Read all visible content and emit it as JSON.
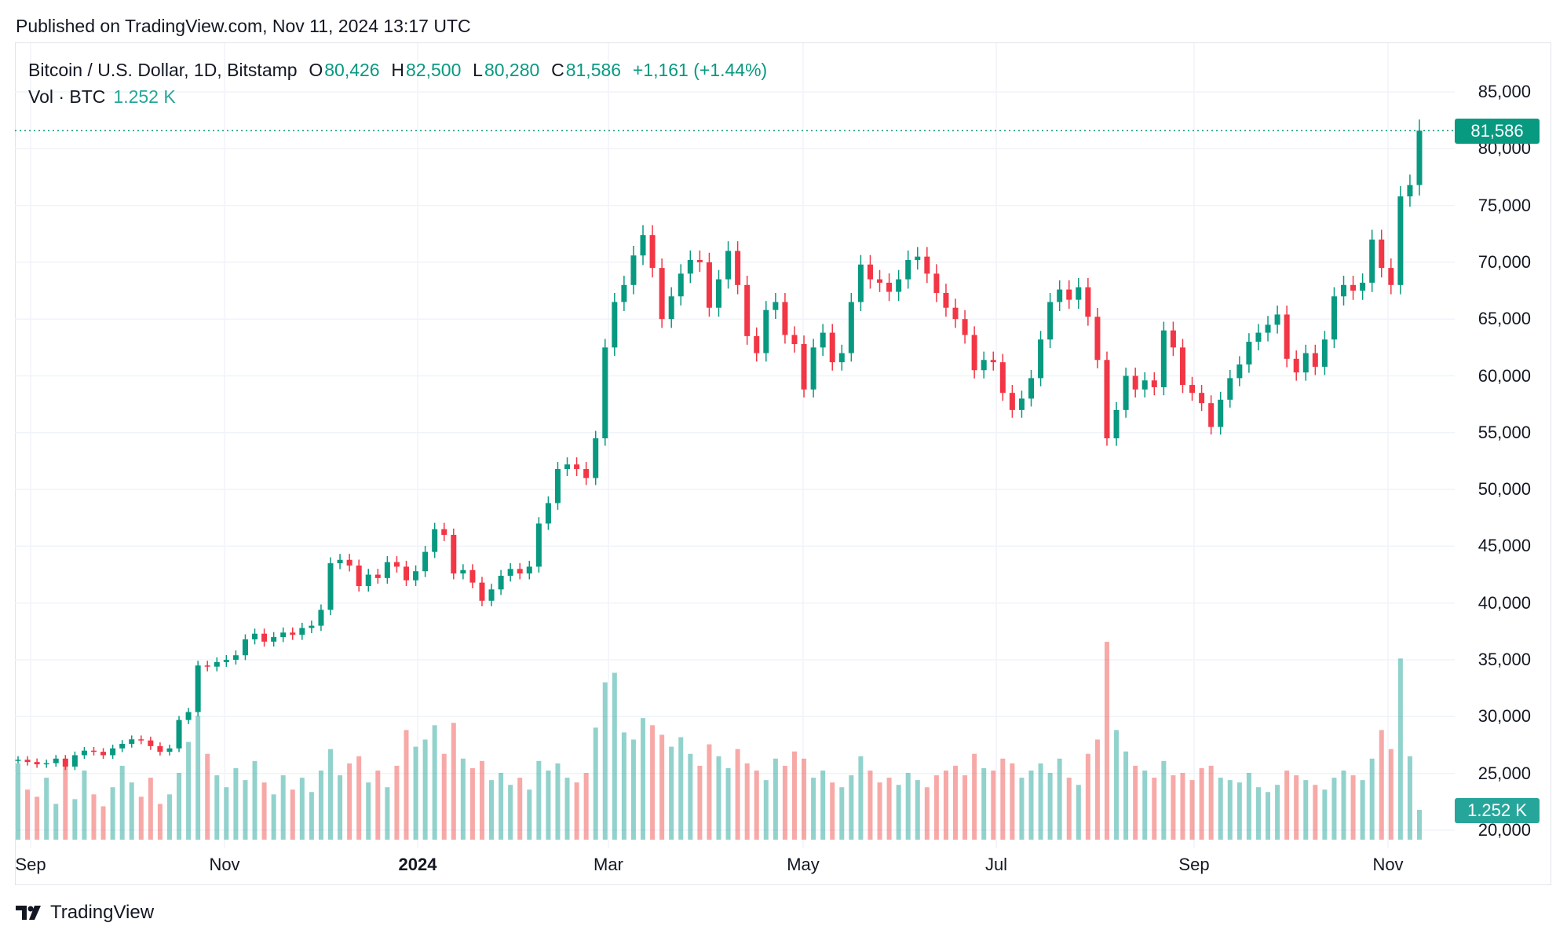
{
  "published": "Published on TradingView.com, Nov 11, 2024 13:17 UTC",
  "legend": {
    "symbol": "Bitcoin / U.S. Dollar, 1D, Bitstamp",
    "o_label": "O",
    "o": "80,426",
    "h_label": "H",
    "h": "82,500",
    "l_label": "L",
    "l": "80,280",
    "c_label": "C",
    "c": "81,586",
    "change": "+1,161 (+1.44%)",
    "vol_label": "Vol · BTC",
    "vol": "1.252 K"
  },
  "price_tag": "81,586",
  "volume_tag": "1.252 K",
  "logo_text": "TradingView",
  "colors": {
    "up": "#089981",
    "down": "#F23645",
    "vol_up": "#26a69a",
    "vol_down": "#ef5350",
    "grid": "#f0f3fa"
  },
  "chart_data": {
    "type": "candlestick",
    "interval": "1D",
    "ylim": [
      20000,
      85000
    ],
    "yticks": [
      "85,000",
      "80,000",
      "75,000",
      "70,000",
      "65,000",
      "60,000",
      "55,000",
      "50,000",
      "45,000",
      "40,000",
      "35,000",
      "30,000",
      "25,000",
      "20,000"
    ],
    "xticks": [
      {
        "label": "Sep",
        "bold": false
      },
      {
        "label": "Nov",
        "bold": false
      },
      {
        "label": "2024",
        "bold": true
      },
      {
        "label": "Mar",
        "bold": false
      },
      {
        "label": "May",
        "bold": false
      },
      {
        "label": "Jul",
        "bold": false
      },
      {
        "label": "Sep",
        "bold": false
      },
      {
        "label": "Nov",
        "bold": false
      }
    ],
    "grid": true,
    "last_price": 81586,
    "close": [
      26200,
      26000,
      25800,
      25900,
      26300,
      25600,
      26600,
      27000,
      26900,
      26600,
      27200,
      27600,
      28000,
      27900,
      27400,
      26900,
      27200,
      29700,
      30400,
      34500,
      34400,
      34800,
      35000,
      35400,
      36800,
      37300,
      36600,
      37000,
      37400,
      37200,
      37800,
      38000,
      39400,
      43500,
      43800,
      43300,
      41500,
      42500,
      42200,
      43600,
      43200,
      42000,
      42800,
      44500,
      46500,
      46000,
      42600,
      42900,
      41800,
      40200,
      41200,
      42400,
      43000,
      42600,
      43200,
      47000,
      48800,
      51800,
      52200,
      51800,
      51000,
      54500,
      62500,
      66500,
      68000,
      70600,
      72400,
      69500,
      65000,
      67000,
      69000,
      70200,
      70000,
      66000,
      68500,
      71000,
      68000,
      63500,
      62000,
      65800,
      66500,
      63600,
      62800,
      58800,
      62500,
      63800,
      61200,
      62000,
      66500,
      69800,
      68500,
      68200,
      67400,
      68500,
      70200,
      70500,
      69000,
      67300,
      66000,
      65000,
      63600,
      60500,
      61400,
      61200,
      58500,
      57000,
      58000,
      59800,
      63200,
      66500,
      67600,
      66700,
      67800,
      65200,
      61400,
      54500,
      57000,
      60000,
      58800,
      59600,
      59000,
      64000,
      62500,
      59200,
      58500,
      57600,
      55500,
      57900,
      59800,
      61000,
      63000,
      63800,
      64500,
      65400,
      61500,
      60300,
      62000,
      60800,
      63200,
      67000,
      68000,
      67500,
      68200,
      72000,
      69500,
      68000,
      75800,
      76800,
      81586
    ],
    "volume": [
      3200,
      2100,
      1800,
      2600,
      1500,
      3400,
      1700,
      2900,
      1900,
      1400,
      2200,
      3100,
      2400,
      1800,
      2600,
      1500,
      1900,
      2800,
      4100,
      5200,
      3600,
      2700,
      2200,
      3000,
      2500,
      3300,
      2400,
      1900,
      2700,
      2100,
      2600,
      2000,
      2900,
      3800,
      2700,
      3200,
      3500,
      2400,
      2900,
      2200,
      3100,
      4600,
      3900,
      4200,
      4800,
      3600,
      4900,
      3400,
      3000,
      3300,
      2500,
      2800,
      2300,
      2600,
      2100,
      3300,
      2900,
      3200,
      2600,
      2400,
      2800,
      4700,
      6600,
      7000,
      4500,
      4200,
      5100,
      4800,
      4400,
      3900,
      4300,
      3600,
      3100,
      4000,
      3500,
      3000,
      3800,
      3200,
      2900,
      2500,
      3400,
      3100,
      3700,
      3400,
      2600,
      2900,
      2400,
      2200,
      2700,
      3500,
      2900,
      2400,
      2600,
      2300,
      2800,
      2500,
      2200,
      2700,
      2900,
      3100,
      2700,
      3600,
      3000,
      2900,
      3400,
      3200,
      2600,
      2900,
      3200,
      2800,
      3400,
      2600,
      2300,
      3600,
      4200,
      8300,
      4600,
      3700,
      3100,
      2900,
      2600,
      3300,
      2700,
      2800,
      2500,
      3000,
      3100,
      2600,
      2500,
      2400,
      2800,
      2200,
      2000,
      2300,
      2900,
      2700,
      2500,
      2300,
      2100,
      2600,
      2900,
      2700,
      2500,
      3400,
      4600,
      3800,
      7600,
      3500,
      1252
    ]
  }
}
